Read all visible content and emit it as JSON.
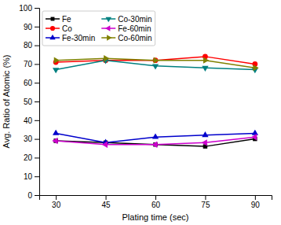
{
  "chart_data": {
    "type": "line",
    "xlabel": "Plating time (sec)",
    "ylabel": "Avg. Ratio of Atomic (%)",
    "x": [
      30,
      45,
      60,
      75,
      90
    ],
    "series": [
      {
        "name": "Fe",
        "color": "#000000",
        "marker": "square",
        "line_style": "solid",
        "values": [
          29,
          28,
          27,
          26,
          30
        ]
      },
      {
        "name": "Co",
        "color": "#ff0000",
        "marker": "circle",
        "line_style": "solid",
        "values": [
          71,
          72,
          72,
          74,
          70
        ]
      },
      {
        "name": "Fe-30min",
        "color": "#0000cc",
        "marker": "triangle-up",
        "line_style": "solid",
        "values": [
          33,
          28,
          31,
          32,
          33
        ]
      },
      {
        "name": "Co-30min",
        "color": "#008080",
        "marker": "triangle-down",
        "line_style": "solid",
        "values": [
          67,
          72,
          69,
          68,
          67
        ]
      },
      {
        "name": "Fe-60min",
        "color": "#cc00cc",
        "marker": "triangle-left",
        "line_style": "solid",
        "values": [
          29,
          27,
          27,
          28,
          31
        ]
      },
      {
        "name": "Co-60min",
        "color": "#808000",
        "marker": "triangle-right",
        "line_style": "solid",
        "values": [
          72,
          73,
          72,
          72,
          68
        ]
      }
    ],
    "xlim": [
      25,
      95
    ],
    "xticks": [
      30,
      45,
      60,
      75,
      90
    ],
    "ylim": [
      0,
      100
    ],
    "yticks": [
      0,
      10,
      20,
      30,
      40,
      50,
      60,
      70,
      80,
      90,
      100
    ],
    "legend": "upper left",
    "grid": false
  }
}
